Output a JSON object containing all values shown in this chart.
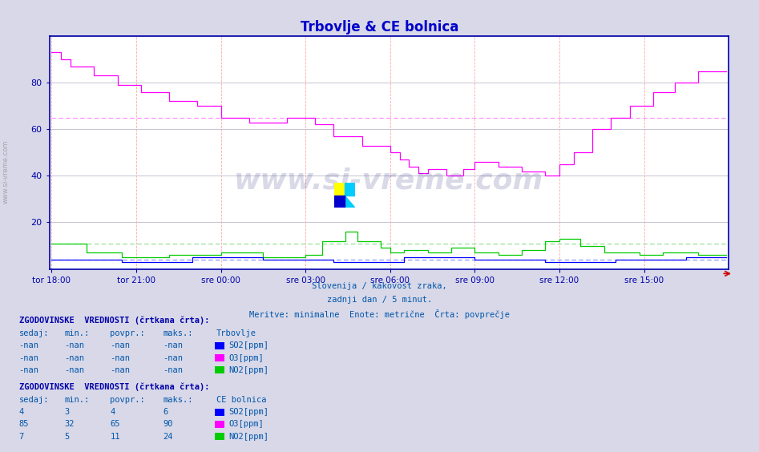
{
  "title": "Trbovlje & CE bolnica",
  "title_color": "#0000cc",
  "bg_color": "#d8d8e8",
  "plot_bg_color": "#ffffff",
  "grid_color_h": "#bbbbbb",
  "grid_color_v": "#ffaaaa",
  "xlabel_color": "#0000aa",
  "watermark_text": "www.si-vreme.com",
  "watermark_logo_colors": [
    "#ffff00",
    "#00ccff",
    "#0000cc"
  ],
  "subtitle_lines": [
    "Slovenija / kakovost zraka,",
    "zadnji dan / 5 minut.",
    "Meritve: minimalne  Enote: metrične  Črta: povprečje"
  ],
  "x_tick_labels": [
    "tor 18:00",
    "tor 21:00",
    "sre 00:00",
    "sre 03:00",
    "sre 06:00",
    "sre 09:00",
    "sre 12:00",
    "sre 15:00"
  ],
  "x_tick_positions": [
    0,
    36,
    72,
    108,
    144,
    180,
    216,
    252
  ],
  "ylim": [
    0,
    100
  ],
  "yticks": [
    20,
    40,
    60,
    80
  ],
  "n_points": 288,
  "legend_section1_header": "ZGODOVINSKE  VREDNOSTI (črtkana črta):",
  "legend_section1_cols": [
    "sedaj:",
    "min.:",
    "povpr.:",
    "maks.:",
    "Trbovlje"
  ],
  "legend_section1_data": [
    [
      "-nan",
      "-nan",
      "-nan",
      "-nan",
      "SO2[ppm]"
    ],
    [
      "-nan",
      "-nan",
      "-nan",
      "-nan",
      "O3[ppm]"
    ],
    [
      "-nan",
      "-nan",
      "-nan",
      "-nan",
      "NO2[ppm]"
    ]
  ],
  "legend_section2_header": "ZGODOVINSKE  VREDNOSTI (črtkana črta):",
  "legend_section2_cols": [
    "sedaj:",
    "min.:",
    "povpr.:",
    "maks.:",
    "CE bolnica"
  ],
  "legend_section2_data": [
    [
      "4",
      "3",
      "4",
      "6",
      "SO2[ppm]"
    ],
    [
      "85",
      "32",
      "65",
      "90",
      "O3[ppm]"
    ],
    [
      "7",
      "5",
      "11",
      "24",
      "NO2[ppm]"
    ]
  ],
  "color_SO2": "#0000ff",
  "color_O3": "#ff00ff",
  "color_NO2": "#00cc00",
  "color_SO2_avg": "#8888ff",
  "color_O3_avg": "#ff88ff",
  "color_NO2_avg": "#88dd88",
  "side_text_color": "#888888",
  "text_color": "#0055aa"
}
